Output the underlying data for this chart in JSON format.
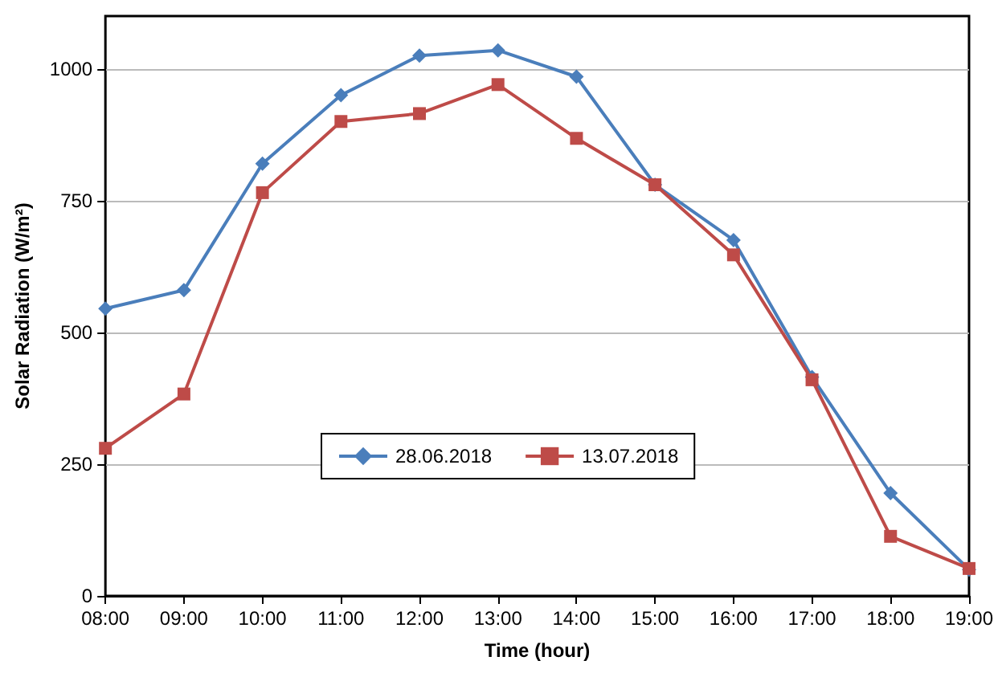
{
  "chart_data": {
    "type": "line",
    "xlabel": "Time (hour)",
    "ylabel": "Solar Radiation (W/m²)",
    "categories": [
      "08:00",
      "09:00",
      "10:00",
      "11:00",
      "12:00",
      "13:00",
      "14:00",
      "15:00",
      "16:00",
      "17:00",
      "18:00",
      "19:00"
    ],
    "series": [
      {
        "name": "28.06.2018",
        "color": "#4a7ebb",
        "marker": "diamond",
        "values": [
          545,
          580,
          820,
          950,
          1025,
          1035,
          985,
          780,
          675,
          415,
          195,
          50
        ]
      },
      {
        "name": "13.07.2018",
        "color": "#be4b48",
        "marker": "square",
        "values": [
          280,
          383,
          765,
          900,
          915,
          970,
          868,
          780,
          647,
          410,
          113,
          52
        ]
      }
    ],
    "ylim": [
      0,
      1100
    ],
    "yticks": [
      0,
      250,
      500,
      750,
      1000
    ],
    "grid": "y",
    "legend": "bottom"
  }
}
